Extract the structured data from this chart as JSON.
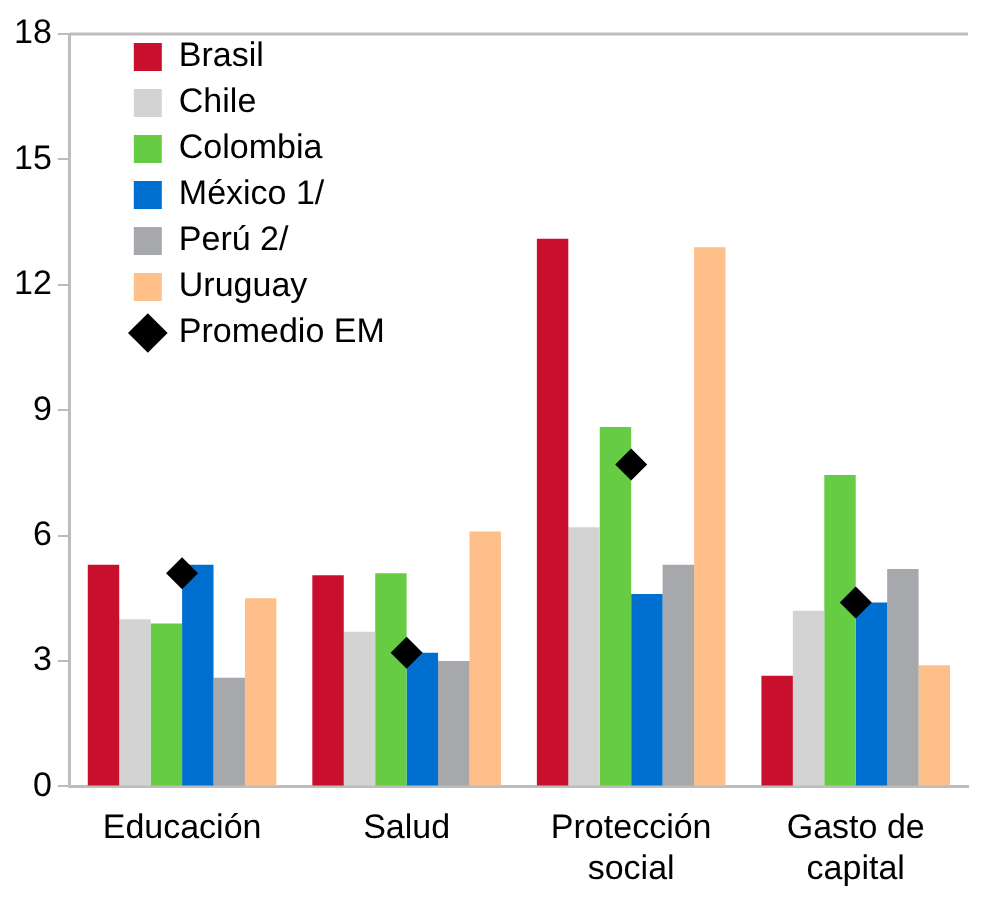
{
  "chart_data": {
    "type": "bar",
    "categories": [
      "Educación",
      "Salud",
      "Protección social",
      "Gasto de capital"
    ],
    "ylim": [
      0,
      18
    ],
    "yticks": [
      0,
      3,
      6,
      9,
      12,
      15,
      18
    ],
    "grid": false,
    "legend": "top left",
    "series": [
      {
        "name": "Brasil",
        "color": "#c8102e",
        "values": [
          5.3,
          5.05,
          13.1,
          2.65
        ]
      },
      {
        "name": "Chile",
        "color": "#d3d3d3",
        "values": [
          4.0,
          3.7,
          6.2,
          4.2
        ]
      },
      {
        "name": "Colombia",
        "color": "#66cc44",
        "values": [
          3.9,
          5.1,
          8.6,
          7.45
        ]
      },
      {
        "name": "México 1/",
        "color": "#0070d0",
        "values": [
          5.3,
          3.2,
          4.6,
          4.4
        ]
      },
      {
        "name": "Perú 2/",
        "color": "#a6a8ac",
        "values": [
          2.6,
          3.0,
          5.3,
          5.2
        ]
      },
      {
        "name": "Uruguay",
        "color": "#ffbf8a",
        "values": [
          4.5,
          6.1,
          12.9,
          2.9
        ]
      },
      {
        "name": "Promedio EM",
        "type": "scatter",
        "marker": "diamond",
        "color": "#000000",
        "x": [
          "Educación",
          "Salud",
          "Protección social",
          "Gasto de capital"
        ],
        "values": [
          5.1,
          3.2,
          7.7,
          4.4
        ]
      }
    ]
  }
}
